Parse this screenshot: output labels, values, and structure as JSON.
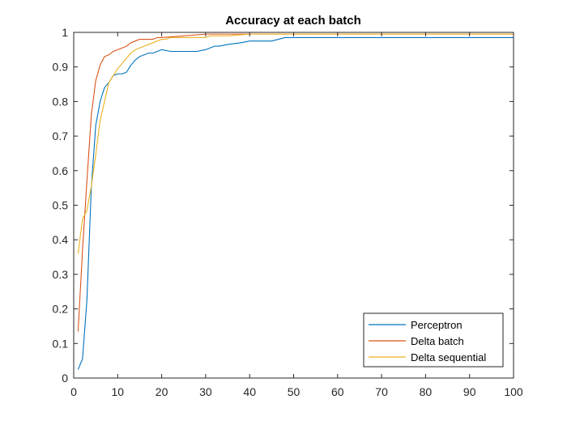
{
  "chart_data": {
    "type": "line",
    "title": "Accuracy at each batch",
    "xlabel": "",
    "ylabel": "",
    "xlim": [
      0,
      100
    ],
    "ylim": [
      0,
      1
    ],
    "xticks": [
      0,
      10,
      20,
      30,
      40,
      50,
      60,
      70,
      80,
      90,
      100
    ],
    "yticks": [
      0,
      0.1,
      0.2,
      0.3,
      0.4,
      0.5,
      0.6,
      0.7,
      0.8,
      0.9,
      1
    ],
    "grid": false,
    "legend_position": "bottom-right",
    "series": [
      {
        "name": "Perceptron",
        "color": "#0072BD",
        "x": [
          1,
          2,
          3,
          4,
          5,
          6,
          7,
          8,
          9,
          10,
          11,
          12,
          13,
          14,
          15,
          16,
          17,
          18,
          19,
          20,
          22,
          25,
          28,
          30,
          31,
          32,
          33,
          35,
          38,
          40,
          45,
          48,
          50,
          60,
          70,
          80,
          90,
          100
        ],
        "y": [
          0.025,
          0.055,
          0.225,
          0.55,
          0.73,
          0.8,
          0.84,
          0.855,
          0.875,
          0.88,
          0.88,
          0.885,
          0.905,
          0.92,
          0.93,
          0.935,
          0.94,
          0.94,
          0.945,
          0.95,
          0.945,
          0.945,
          0.945,
          0.95,
          0.955,
          0.96,
          0.96,
          0.965,
          0.97,
          0.975,
          0.975,
          0.985,
          0.985,
          0.985,
          0.985,
          0.985,
          0.985,
          0.985
        ]
      },
      {
        "name": "Delta batch",
        "color": "#D95319",
        "x": [
          1,
          2,
          3,
          4,
          5,
          6,
          7,
          8,
          9,
          10,
          11,
          12,
          13,
          14,
          15,
          16,
          17,
          18,
          19,
          20,
          25,
          30,
          40,
          50,
          60,
          70,
          80,
          90,
          100
        ],
        "y": [
          0.135,
          0.37,
          0.57,
          0.76,
          0.86,
          0.905,
          0.93,
          0.935,
          0.945,
          0.95,
          0.955,
          0.96,
          0.97,
          0.975,
          0.98,
          0.98,
          0.98,
          0.98,
          0.985,
          0.985,
          0.99,
          0.995,
          0.995,
          0.995,
          0.995,
          0.995,
          0.995,
          0.995,
          0.995
        ]
      },
      {
        "name": "Delta sequential",
        "color": "#EDB120",
        "x": [
          1,
          2,
          3,
          4,
          5,
          6,
          7,
          8,
          9,
          10,
          11,
          12,
          13,
          14,
          15,
          16,
          17,
          18,
          19,
          20,
          21,
          22,
          25,
          28,
          30,
          31,
          33,
          35,
          40,
          45,
          50,
          60,
          70,
          80,
          90,
          100
        ],
        "y": [
          0.36,
          0.46,
          0.485,
          0.555,
          0.645,
          0.745,
          0.8,
          0.855,
          0.875,
          0.895,
          0.91,
          0.925,
          0.94,
          0.95,
          0.955,
          0.96,
          0.965,
          0.97,
          0.975,
          0.98,
          0.98,
          0.985,
          0.985,
          0.985,
          0.985,
          0.99,
          0.99,
          0.99,
          0.995,
          0.995,
          0.995,
          0.995,
          0.995,
          0.995,
          0.995,
          0.995
        ]
      }
    ]
  }
}
